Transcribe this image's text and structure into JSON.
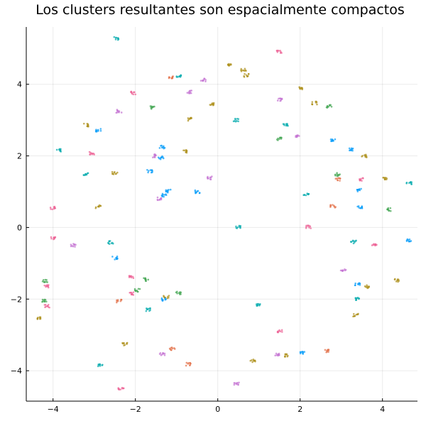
{
  "chart_data": {
    "type": "scatter",
    "title": "Los clusters resultantes son espacialmente compactos",
    "xlabel": "",
    "ylabel": "",
    "xlim": [
      -4.65,
      4.85
    ],
    "ylim": [
      -4.85,
      5.6
    ],
    "x_ticks": [
      -4,
      -2,
      0,
      2,
      4
    ],
    "y_ticks": [
      -4,
      -2,
      0,
      2,
      4
    ],
    "x_tick_labels": [
      "−4",
      "−2",
      "0",
      "2",
      "4"
    ],
    "y_tick_labels": [
      "−4",
      "−2",
      "0",
      "2",
      "4"
    ],
    "grid": true,
    "legend": "none",
    "palette": [
      "#009AFA",
      "#E36F47",
      "#3EA44E",
      "#C371D2",
      "#AC8E18",
      "#00A9AD",
      "#ED5E93"
    ],
    "clusters": [
      {
        "x": -2.45,
        "y": 5.28,
        "c": 5
      },
      {
        "x": -0.95,
        "y": 4.22,
        "c": 5
      },
      {
        "x": -0.35,
        "y": 4.12,
        "c": 3
      },
      {
        "x": 0.27,
        "y": 4.55,
        "c": 4
      },
      {
        "x": 0.62,
        "y": 4.4,
        "c": 4
      },
      {
        "x": 0.7,
        "y": 4.25,
        "c": 4
      },
      {
        "x": 1.5,
        "y": 4.9,
        "c": 6
      },
      {
        "x": -2.05,
        "y": 3.76,
        "c": 6
      },
      {
        "x": -1.15,
        "y": 4.18,
        "c": 1
      },
      {
        "x": -0.7,
        "y": 3.78,
        "c": 3
      },
      {
        "x": 2.02,
        "y": 3.9,
        "c": 4
      },
      {
        "x": 2.35,
        "y": 3.48,
        "c": 4
      },
      {
        "x": 2.7,
        "y": 3.38,
        "c": 2
      },
      {
        "x": -2.4,
        "y": 3.25,
        "c": 3
      },
      {
        "x": -1.6,
        "y": 3.35,
        "c": 2
      },
      {
        "x": -0.7,
        "y": 3.02,
        "c": 4
      },
      {
        "x": -0.15,
        "y": 3.45,
        "c": 4
      },
      {
        "x": 0.45,
        "y": 3.0,
        "c": 5
      },
      {
        "x": 1.5,
        "y": 3.58,
        "c": 3
      },
      {
        "x": 1.65,
        "y": 2.88,
        "c": 5
      },
      {
        "x": -3.2,
        "y": 2.86,
        "c": 4
      },
      {
        "x": -2.9,
        "y": 2.72,
        "c": 0
      },
      {
        "x": -3.85,
        "y": 2.15,
        "c": 5
      },
      {
        "x": -3.05,
        "y": 2.08,
        "c": 6
      },
      {
        "x": -1.35,
        "y": 2.25,
        "c": 0
      },
      {
        "x": -0.8,
        "y": 2.12,
        "c": 4
      },
      {
        "x": 1.5,
        "y": 2.48,
        "c": 2
      },
      {
        "x": 1.92,
        "y": 2.55,
        "c": 3
      },
      {
        "x": 2.8,
        "y": 2.45,
        "c": 0
      },
      {
        "x": 3.25,
        "y": 2.18,
        "c": 0
      },
      {
        "x": 3.55,
        "y": 2.0,
        "c": 4
      },
      {
        "x": -1.55,
        "y": 2.0,
        "c": 3
      },
      {
        "x": -1.38,
        "y": 1.95,
        "c": 0
      },
      {
        "x": -3.2,
        "y": 1.48,
        "c": 5
      },
      {
        "x": -2.5,
        "y": 1.52,
        "c": 4
      },
      {
        "x": -1.65,
        "y": 1.58,
        "c": 0
      },
      {
        "x": -0.2,
        "y": 1.38,
        "c": 3
      },
      {
        "x": 2.9,
        "y": 1.48,
        "c": 2
      },
      {
        "x": 2.92,
        "y": 1.35,
        "c": 1
      },
      {
        "x": 3.5,
        "y": 1.35,
        "c": 6
      },
      {
        "x": 4.05,
        "y": 1.35,
        "c": 4
      },
      {
        "x": 4.65,
        "y": 1.25,
        "c": 5
      },
      {
        "x": -1.2,
        "y": 1.02,
        "c": 0
      },
      {
        "x": -1.3,
        "y": 0.9,
        "c": 0
      },
      {
        "x": -1.4,
        "y": 0.8,
        "c": 3
      },
      {
        "x": -0.5,
        "y": 1.0,
        "c": 0
      },
      {
        "x": 2.15,
        "y": 0.92,
        "c": 5
      },
      {
        "x": 3.45,
        "y": 1.05,
        "c": 0
      },
      {
        "x": -4.0,
        "y": 0.55,
        "c": 6
      },
      {
        "x": -2.9,
        "y": 0.58,
        "c": 4
      },
      {
        "x": 2.8,
        "y": 0.6,
        "c": 1
      },
      {
        "x": 3.45,
        "y": 0.58,
        "c": 0
      },
      {
        "x": 4.15,
        "y": 0.5,
        "c": 2
      },
      {
        "x": 0.5,
        "y": 0.02,
        "c": 5
      },
      {
        "x": 2.2,
        "y": 0.02,
        "c": 6
      },
      {
        "x": -4.0,
        "y": -0.3,
        "c": 6
      },
      {
        "x": -3.5,
        "y": -0.5,
        "c": 3
      },
      {
        "x": -2.6,
        "y": -0.42,
        "c": 5
      },
      {
        "x": 3.3,
        "y": -0.4,
        "c": 5
      },
      {
        "x": 3.8,
        "y": -0.5,
        "c": 6
      },
      {
        "x": 4.65,
        "y": -0.35,
        "c": 0
      },
      {
        "x": -2.5,
        "y": -0.85,
        "c": 0
      },
      {
        "x": 3.05,
        "y": -1.2,
        "c": 3
      },
      {
        "x": -2.1,
        "y": -1.38,
        "c": 6
      },
      {
        "x": -1.75,
        "y": -1.45,
        "c": 2
      },
      {
        "x": -4.2,
        "y": -1.5,
        "c": 2
      },
      {
        "x": -4.15,
        "y": -1.65,
        "c": 6
      },
      {
        "x": 3.4,
        "y": -1.58,
        "c": 0
      },
      {
        "x": 3.62,
        "y": -1.65,
        "c": 4
      },
      {
        "x": 4.35,
        "y": -1.48,
        "c": 4
      },
      {
        "x": -2.1,
        "y": -1.85,
        "c": 6
      },
      {
        "x": -1.95,
        "y": -1.75,
        "c": 2
      },
      {
        "x": -1.25,
        "y": -1.95,
        "c": 4
      },
      {
        "x": -0.95,
        "y": -1.82,
        "c": 2
      },
      {
        "x": -4.2,
        "y": -2.05,
        "c": 2
      },
      {
        "x": -4.15,
        "y": -2.2,
        "c": 6
      },
      {
        "x": -2.4,
        "y": -2.05,
        "c": 1
      },
      {
        "x": -1.7,
        "y": -2.3,
        "c": 5
      },
      {
        "x": -1.3,
        "y": -2.0,
        "c": 0
      },
      {
        "x": 1.0,
        "y": -2.15,
        "c": 5
      },
      {
        "x": 3.4,
        "y": -2.0,
        "c": 5
      },
      {
        "x": 3.35,
        "y": -2.45,
        "c": 4
      },
      {
        "x": -4.35,
        "y": -2.52,
        "c": 4
      },
      {
        "x": 1.5,
        "y": -2.9,
        "c": 6
      },
      {
        "x": -2.25,
        "y": -3.25,
        "c": 4
      },
      {
        "x": -1.35,
        "y": -3.55,
        "c": 3
      },
      {
        "x": -1.1,
        "y": -3.38,
        "c": 1
      },
      {
        "x": 1.45,
        "y": -3.55,
        "c": 3
      },
      {
        "x": 1.65,
        "y": -3.58,
        "c": 4
      },
      {
        "x": 2.05,
        "y": -3.5,
        "c": 0
      },
      {
        "x": 2.65,
        "y": -3.45,
        "c": 1
      },
      {
        "x": -2.85,
        "y": -3.85,
        "c": 5
      },
      {
        "x": -0.72,
        "y": -3.82,
        "c": 1
      },
      {
        "x": 0.85,
        "y": -3.72,
        "c": 4
      },
      {
        "x": 0.45,
        "y": -4.35,
        "c": 3
      },
      {
        "x": -2.35,
        "y": -4.52,
        "c": 6
      }
    ]
  }
}
